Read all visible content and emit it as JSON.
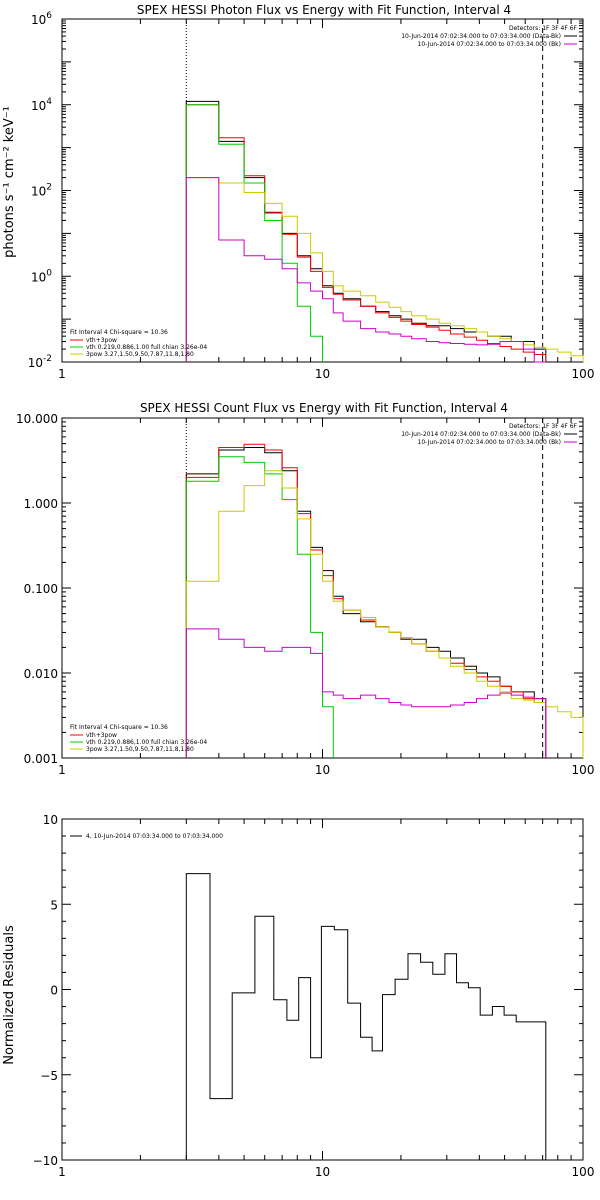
{
  "chart_data": [
    {
      "type": "line",
      "title": "SPEX HESSI Photon Flux vs Energy with Fit Function, Interval 4",
      "ylabel": "photons s⁻¹ cm⁻² keV⁻¹",
      "xlabel": "",
      "xscale": "log",
      "yscale": "log",
      "xlim": [
        1,
        100
      ],
      "ylim": [
        0.01,
        1000000
      ],
      "x_ticks": [
        {
          "v": 1,
          "label": "1"
        },
        {
          "v": 10,
          "label": "10"
        },
        {
          "v": 100,
          "label": "100"
        }
      ],
      "y_ticks": [
        {
          "v": 0.01,
          "base": "10",
          "exp": "-2"
        },
        {
          "v": 1,
          "base": "10",
          "exp": "0"
        },
        {
          "v": 100,
          "base": "10",
          "exp": "2"
        },
        {
          "v": 10000,
          "base": "10",
          "exp": "4"
        },
        {
          "v": 1000000,
          "base": "10",
          "exp": "6"
        }
      ],
      "dotted_line_x": 3,
      "dashed_line_x": 70,
      "legend_top": {
        "header": "Detectors: 1F 3F 4F 6F",
        "entries": [
          {
            "text": "10-Jun-2014 07:02:34.000 to 07:03:34.000 (Data-Bk)",
            "color": "#000000"
          },
          {
            "text": "10-Jun-2014 07:02:34.000 to 07:03:34.000 (Bk)",
            "color": "#cc00cc"
          }
        ]
      },
      "legend_bottom": {
        "header": "Fit Interval  4    Chi-square = 10.36",
        "entries": [
          {
            "text": "vth+3pow",
            "color": "#ff0000"
          },
          {
            "text": "vth 0.219,0.886,1.00  full chian 3.26e-04",
            "color": "#00cc00"
          },
          {
            "text": "3pow 3.27,1.50,9.50,7.87,11.8,1.80",
            "color": "#cccc00"
          }
        ]
      },
      "series": [
        {
          "name": "Data-Bk",
          "color": "#000000",
          "edges": [
            3,
            4,
            5,
            6,
            7,
            8,
            9,
            10,
            11,
            12,
            14,
            16,
            18,
            20,
            22,
            25,
            28,
            31,
            35,
            39,
            43,
            48,
            53,
            59,
            65,
            72
          ],
          "values": [
            12000,
            1400,
            200,
            30,
            10,
            3,
            1.5,
            0.6,
            0.4,
            0.3,
            0.2,
            0.15,
            0.12,
            0.1,
            0.08,
            0.07,
            0.07,
            0.06,
            0.05,
            0.05,
            0.04,
            0.04,
            0.03,
            0.03,
            0.02
          ]
        },
        {
          "name": "vth+3pow",
          "color": "#ff0000",
          "edges": [
            3,
            4,
            5,
            6,
            7,
            8,
            9,
            10,
            11,
            12,
            14,
            16,
            18,
            20,
            22,
            25,
            28,
            31,
            35,
            39,
            43,
            48,
            53,
            59,
            65,
            72
          ],
          "values": [
            10000,
            1700,
            220,
            31,
            9.5,
            2.8,
            1.3,
            0.55,
            0.38,
            0.28,
            0.2,
            0.14,
            0.11,
            0.09,
            0.075,
            0.065,
            0.055,
            0.045,
            0.038,
            0.032,
            0.027,
            0.023,
            0.02,
            0.017,
            0.015
          ]
        },
        {
          "name": "vth",
          "color": "#00cc00",
          "edges": [
            3,
            4,
            5,
            6,
            7,
            8,
            9,
            10
          ],
          "values": [
            10000,
            1200,
            150,
            20,
            2,
            0.2,
            0.04
          ]
        },
        {
          "name": "3pow",
          "color": "#cccc00",
          "edges": [
            3,
            4,
            5,
            6,
            7,
            8,
            9,
            10,
            11,
            12,
            14,
            16,
            18,
            20,
            22,
            25,
            28,
            31,
            35,
            39,
            43,
            48,
            53,
            59,
            65,
            72,
            80,
            90,
            100
          ],
          "values": [
            200,
            150,
            90,
            50,
            25,
            10,
            3.5,
            1.3,
            0.6,
            0.45,
            0.35,
            0.25,
            0.19,
            0.15,
            0.12,
            0.1,
            0.08,
            0.07,
            0.06,
            0.05,
            0.04,
            0.035,
            0.03,
            0.025,
            0.022,
            0.02,
            0.017,
            0.014
          ]
        },
        {
          "name": "Bk",
          "color": "#cc00cc",
          "edges": [
            3,
            4,
            5,
            6,
            7,
            8,
            9,
            10,
            11,
            12,
            14,
            16,
            18,
            20,
            22,
            25,
            28,
            31,
            35,
            39,
            43,
            48,
            53,
            59,
            65,
            72
          ],
          "values": [
            200,
            7,
            3,
            2.5,
            1.5,
            0.7,
            0.45,
            0.3,
            0.14,
            0.09,
            0.06,
            0.05,
            0.045,
            0.04,
            0.035,
            0.03,
            0.028,
            0.027,
            0.026,
            0.025,
            0.026,
            0.03,
            0.03,
            0.02,
            0.01
          ]
        }
      ]
    },
    {
      "type": "line",
      "title": "SPEX HESSI Count Flux vs Energy with Fit Function, Interval 4",
      "ylabel": "",
      "xlabel": "",
      "xscale": "log",
      "yscale": "log",
      "xlim": [
        1,
        100
      ],
      "ylim": [
        0.001,
        10
      ],
      "x_ticks": [
        {
          "v": 1,
          "label": "1"
        },
        {
          "v": 10,
          "label": "10"
        },
        {
          "v": 100,
          "label": "100"
        }
      ],
      "y_ticks": [
        {
          "v": 0.001,
          "label": "0.001"
        },
        {
          "v": 0.01,
          "label": "0.010"
        },
        {
          "v": 0.1,
          "label": "0.100"
        },
        {
          "v": 1,
          "label": "1.000"
        },
        {
          "v": 10,
          "label": "10.000"
        }
      ],
      "dotted_line_x": 3,
      "dashed_line_x": 70,
      "legend_top": {
        "header": "Detectors: 1F 3F 4F 6F",
        "entries": [
          {
            "text": "10-Jun-2014 07:02:34.000 to 07:03:34.000 (Data-Bk)",
            "color": "#000000"
          },
          {
            "text": "10-Jun-2014 07:02:34.000 to 07:03:34.000 (Bk)",
            "color": "#cc00cc"
          }
        ]
      },
      "legend_bottom": {
        "header": "Fit Interval  4    Chi-square = 10.36",
        "entries": [
          {
            "text": "vth+3pow",
            "color": "#ff0000"
          },
          {
            "text": "vth 0.219,0.886,1.00  full chian 3.26e-04",
            "color": "#00cc00"
          },
          {
            "text": "3pow 3.27,1.50,9.50,7.87,11.8,1.80",
            "color": "#cccc00"
          }
        ]
      },
      "series": [
        {
          "name": "Data-Bk",
          "color": "#000000",
          "edges": [
            3,
            4,
            5,
            6,
            7,
            8,
            9,
            10,
            11,
            12,
            14,
            16,
            18,
            20,
            22,
            25,
            28,
            31,
            35,
            39,
            43,
            48,
            53,
            59,
            65,
            72
          ],
          "values": [
            2.2,
            4.2,
            4.5,
            3.9,
            2.4,
            0.8,
            0.3,
            0.16,
            0.08,
            0.05,
            0.04,
            0.035,
            0.03,
            0.025,
            0.025,
            0.02,
            0.018,
            0.015,
            0.012,
            0.01,
            0.009,
            0.007,
            0.006,
            0.006,
            0.005
          ]
        },
        {
          "name": "vth+3pow",
          "color": "#ff0000",
          "edges": [
            3,
            4,
            5,
            6,
            7,
            8,
            9,
            10,
            11,
            12,
            14,
            16,
            18,
            20,
            22,
            25,
            28,
            31,
            35,
            39,
            43,
            48,
            53,
            59,
            65,
            72
          ],
          "values": [
            2.0,
            4.5,
            4.9,
            4.2,
            2.6,
            0.75,
            0.28,
            0.14,
            0.075,
            0.055,
            0.042,
            0.035,
            0.03,
            0.026,
            0.022,
            0.018,
            0.015,
            0.013,
            0.011,
            0.009,
            0.008,
            0.007,
            0.006,
            0.005,
            0.0045
          ]
        },
        {
          "name": "vth",
          "color": "#00cc00",
          "edges": [
            3,
            4,
            5,
            6,
            7,
            8,
            9,
            10,
            11
          ],
          "values": [
            1.8,
            3.5,
            3.0,
            2.2,
            1.1,
            0.25,
            0.03,
            0.004
          ]
        },
        {
          "name": "3pow",
          "color": "#cccc00",
          "edges": [
            3,
            4,
            5,
            6,
            7,
            8,
            9,
            10,
            11,
            12,
            14,
            16,
            18,
            20,
            22,
            25,
            28,
            31,
            35,
            39,
            43,
            48,
            53,
            59,
            65,
            72,
            80,
            90,
            100
          ],
          "values": [
            0.12,
            0.8,
            1.6,
            2.4,
            1.5,
            0.65,
            0.25,
            0.12,
            0.07,
            0.055,
            0.045,
            0.035,
            0.03,
            0.026,
            0.022,
            0.018,
            0.015,
            0.012,
            0.01,
            0.008,
            0.007,
            0.006,
            0.005,
            0.0048,
            0.0045,
            0.004,
            0.0035,
            0.003
          ]
        },
        {
          "name": "Bk",
          "color": "#cc00cc",
          "edges": [
            3,
            4,
            5,
            6,
            7,
            8,
            9,
            10,
            11,
            12,
            14,
            16,
            18,
            20,
            22,
            25,
            28,
            31,
            35,
            39,
            43,
            48,
            53,
            59,
            65,
            72
          ],
          "values": [
            0.033,
            0.025,
            0.02,
            0.018,
            0.02,
            0.02,
            0.017,
            0.006,
            0.0055,
            0.005,
            0.0055,
            0.005,
            0.0045,
            0.0042,
            0.004,
            0.004,
            0.004,
            0.0042,
            0.0045,
            0.005,
            0.0055,
            0.0058,
            0.0055,
            0.0052,
            0.005
          ]
        }
      ]
    },
    {
      "type": "line",
      "title": "",
      "ylabel": "Normalized Residuals",
      "xlabel": "",
      "xscale": "log",
      "yscale": "linear",
      "xlim": [
        1,
        100
      ],
      "ylim": [
        -10,
        10
      ],
      "x_ticks": [
        {
          "v": 1,
          "label": "1"
        },
        {
          "v": 10,
          "label": "10"
        },
        {
          "v": 100,
          "label": "100"
        }
      ],
      "y_ticks": [
        {
          "v": -10,
          "label": "−10"
        },
        {
          "v": -5,
          "label": "−5"
        },
        {
          "v": 0,
          "label": "0"
        },
        {
          "v": 5,
          "label": "5"
        },
        {
          "v": 10,
          "label": "10"
        }
      ],
      "legend_top": {
        "header": "",
        "entries": [
          {
            "text": "4, 10-Jun-2014 07:03:34.000 to 07:03:34.000",
            "color": "#000000"
          }
        ]
      },
      "series": [
        {
          "name": "4, 10-Jun-2014 07:03:34.000 to 07:03:34.000",
          "color": "#000000",
          "edges": [
            3,
            3.7,
            4.5,
            5.5,
            6.5,
            7.3,
            8.1,
            9,
            9.9,
            11.1,
            12.5,
            14,
            15.5,
            17,
            19,
            21.3,
            23.8,
            26.5,
            29.5,
            32.7,
            36.3,
            40.3,
            44.9,
            49.8,
            55.4,
            61.5,
            68.3,
            72
          ],
          "values": [
            6.8,
            -6.4,
            -0.2,
            4.3,
            -0.6,
            -1.8,
            0.7,
            -4,
            3.7,
            3.5,
            -0.8,
            -2.8,
            -3.6,
            -0.3,
            0.6,
            2.1,
            1.6,
            0.9,
            2.1,
            0.4,
            0.1,
            -1.5,
            -1,
            -1.5,
            -1.9,
            -1.9,
            -1.9
          ]
        }
      ]
    }
  ],
  "colors": {
    "axis": "#000000",
    "background": "#ffffff"
  }
}
